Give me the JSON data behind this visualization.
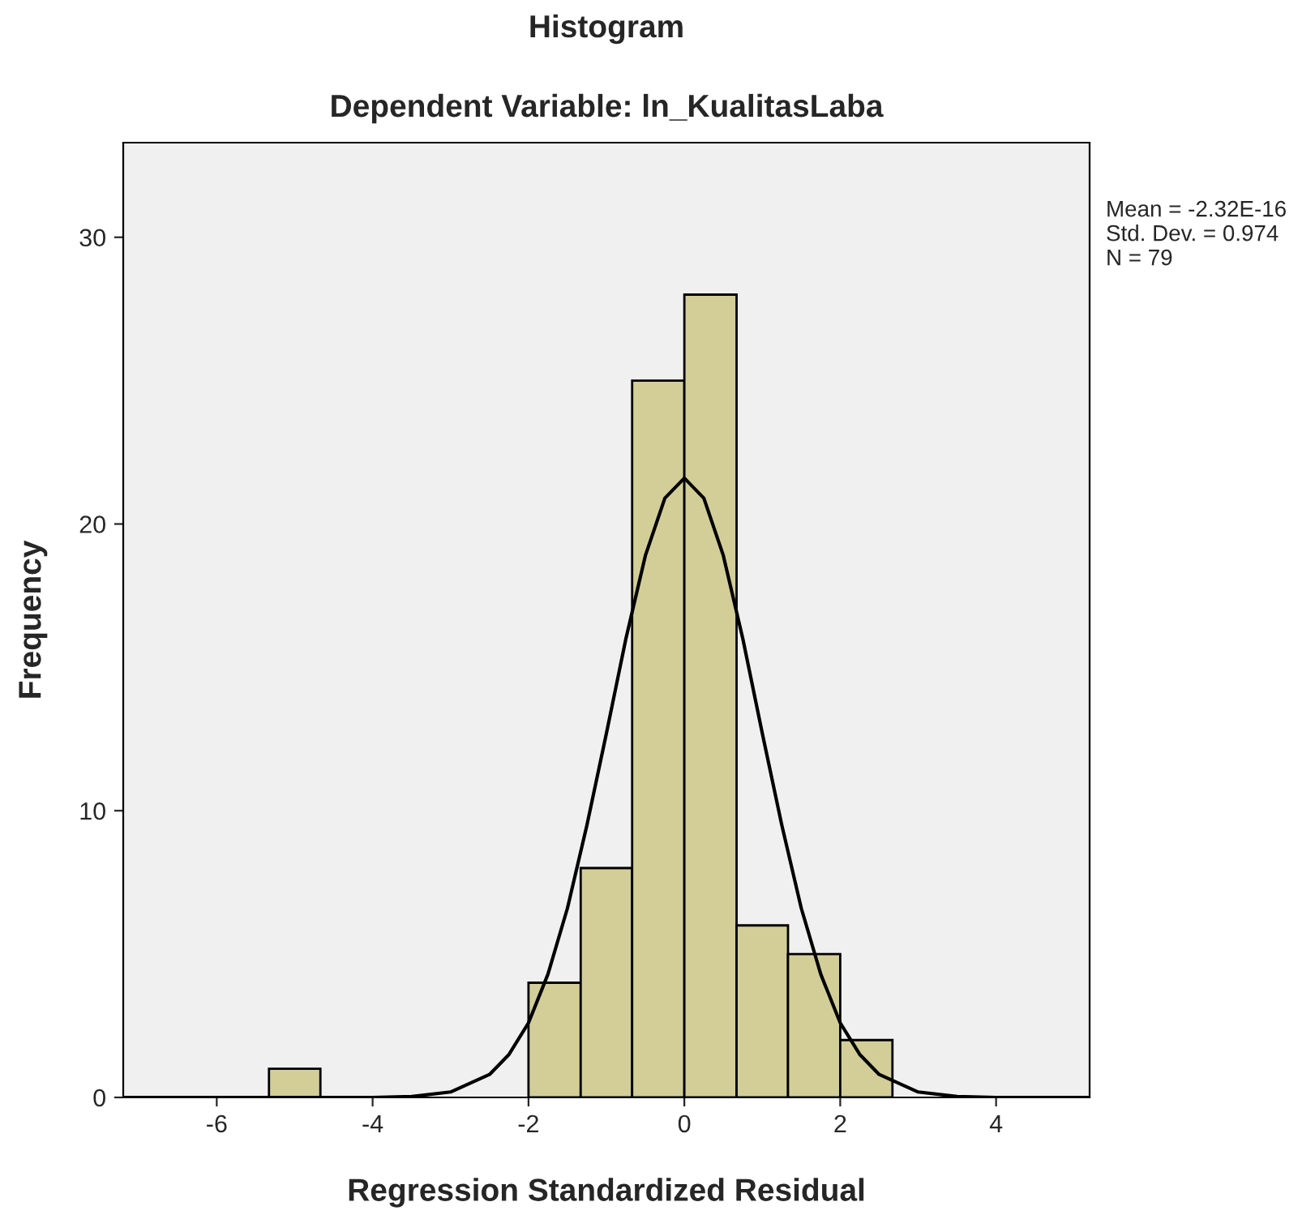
{
  "chart_data": {
    "type": "histogram",
    "title": "Histogram",
    "subtitle": "Dependent Variable: ln_KualitasLaba",
    "xlabel": "Regression Standardized Residual",
    "ylabel": "Frequency",
    "bins": [
      -5.33,
      -4.67,
      -2,
      -1.33,
      -0.67,
      0,
      0.67,
      1.33,
      2,
      2.67
    ],
    "values": [
      1,
      0,
      4,
      8,
      25,
      28,
      6,
      5,
      2
    ],
    "color": "#d3ce98",
    "series": [
      {
        "type": "line",
        "color": "#000000",
        "x": [
          -7.2,
          -4,
          -3.5,
          -3,
          -2.5,
          -2.25,
          -2,
          -1.75,
          -1.5,
          -1.25,
          -1,
          -0.75,
          -0.5,
          -0.25,
          0,
          0.25,
          0.5,
          0.75,
          1,
          1.25,
          1.5,
          1.75,
          2,
          2.25,
          2.5,
          3,
          3.5,
          4,
          5.2
        ],
        "values": [
          0,
          0,
          0.03,
          0.19,
          0.8,
          1.5,
          2.6,
          4.3,
          6.6,
          9.5,
          12.7,
          16.0,
          18.9,
          20.9,
          21.6,
          20.9,
          18.9,
          16.0,
          12.7,
          9.5,
          6.6,
          4.3,
          2.6,
          1.5,
          0.8,
          0.19,
          0.03,
          0,
          0
        ]
      }
    ],
    "xlim": [
      -7.2,
      5.2
    ],
    "ylim": [
      0,
      33.3
    ],
    "xticks": [
      -6,
      -4,
      -2,
      0,
      2,
      4
    ],
    "yticks": [
      0,
      10,
      20,
      30
    ],
    "grid": false,
    "legend": false,
    "annotations": [
      "Mean = -2.32E-16",
      "Std. Dev. = 0.974",
      "N = 79"
    ]
  }
}
